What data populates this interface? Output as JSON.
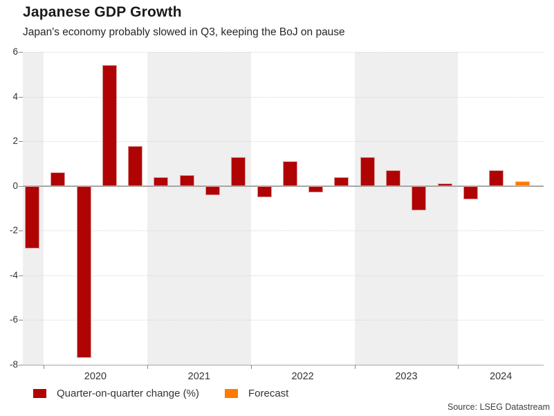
{
  "header": {
    "title": "Japanese GDP Growth",
    "subtitle": "Japan's economy probably slowed in Q3, keeping the BoJ on pause"
  },
  "chart_data": {
    "type": "bar",
    "title": "Japanese GDP Growth",
    "subtitle": "Japan's economy probably slowed in Q3, keeping the BoJ on pause",
    "ylabel": "Quarter-on-quarter change (%)",
    "ylim": [
      -8,
      6
    ],
    "ytick_values": [
      6,
      4,
      2,
      0,
      -2,
      -4,
      -6,
      -8
    ],
    "x_year_labels": [
      "2020",
      "2021",
      "2022",
      "2023",
      "2024"
    ],
    "shaded_band_years": [
      "2019",
      "2021",
      "2023"
    ],
    "grid": "horizontal dotted lines, solid gray zero line and bottom axis",
    "legend_position": "bottom-left",
    "bars": [
      {
        "period": "2019 Q4",
        "value": -2.8,
        "forecast": false
      },
      {
        "period": "2020 Q1",
        "value": 0.6,
        "forecast": false
      },
      {
        "period": "2020 Q2",
        "value": -7.7,
        "forecast": false
      },
      {
        "period": "2020 Q3",
        "value": 5.4,
        "forecast": false
      },
      {
        "period": "2020 Q4",
        "value": 1.8,
        "forecast": false
      },
      {
        "period": "2021 Q1",
        "value": 0.4,
        "forecast": false
      },
      {
        "period": "2021 Q2",
        "value": 0.5,
        "forecast": false
      },
      {
        "period": "2021 Q3",
        "value": -0.4,
        "forecast": false
      },
      {
        "period": "2021 Q4",
        "value": 1.3,
        "forecast": false
      },
      {
        "period": "2022 Q1",
        "value": -0.5,
        "forecast": false
      },
      {
        "period": "2022 Q2",
        "value": 1.1,
        "forecast": false
      },
      {
        "period": "2022 Q3",
        "value": -0.3,
        "forecast": false
      },
      {
        "period": "2022 Q4",
        "value": 0.4,
        "forecast": false
      },
      {
        "period": "2023 Q1",
        "value": 1.3,
        "forecast": false
      },
      {
        "period": "2023 Q2",
        "value": 0.7,
        "forecast": false
      },
      {
        "period": "2023 Q3",
        "value": -1.1,
        "forecast": false
      },
      {
        "period": "2023 Q4",
        "value": 0.1,
        "forecast": false
      },
      {
        "period": "2024 Q1",
        "value": -0.6,
        "forecast": false
      },
      {
        "period": "2024 Q2",
        "value": 0.7,
        "forecast": false
      },
      {
        "period": "2024 Q3",
        "value": 0.2,
        "forecast": true
      }
    ]
  },
  "legend": {
    "items": [
      {
        "label": "Quarter-on-quarter change (%)",
        "color": "#b00404"
      },
      {
        "label": "Forecast",
        "color": "#ff7a00"
      }
    ]
  },
  "source": "Source: LSEG Datastream",
  "colors": {
    "actual_bar": "#b00404",
    "actual_bar_border": "#dc9a9a",
    "forecast_bar": "#ff7a00",
    "forecast_bar_border": "#ffb470",
    "year_band": "#efefef",
    "zero_line": "#a6a6a6",
    "gridline": "#d6d6d6",
    "text": "#333333"
  }
}
